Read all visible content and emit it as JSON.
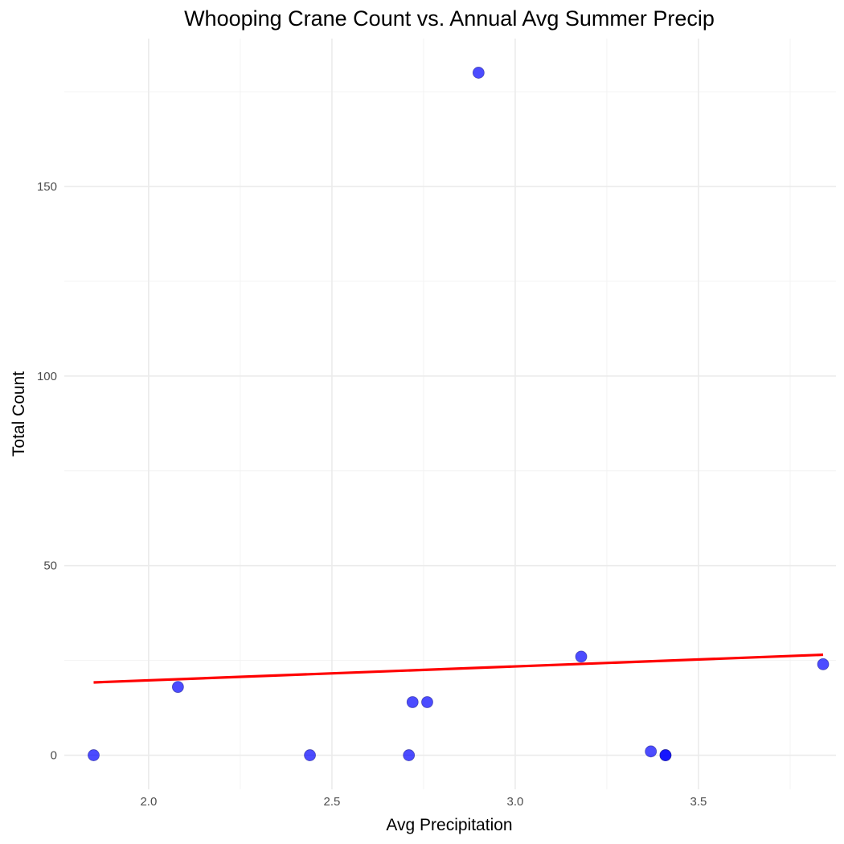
{
  "chart_data": {
    "type": "scatter",
    "title": "Whooping Crane Count vs. Annual Avg Summer Precip",
    "xlabel": "Avg Precipitation",
    "ylabel": "Total Count",
    "xlim": [
      1.77,
      3.875
    ],
    "ylim": [
      -9,
      189
    ],
    "x_ticks": [
      2.0,
      2.5,
      3.0,
      3.5
    ],
    "x_tick_labels": [
      "2.0",
      "2.5",
      "3.0",
      "3.5"
    ],
    "x_minor_ticks": [
      2.25,
      2.75,
      3.25,
      3.75
    ],
    "y_ticks": [
      0,
      50,
      100,
      150
    ],
    "y_tick_labels": [
      "0",
      "50",
      "100",
      "150"
    ],
    "y_minor_ticks": [
      25,
      75,
      125,
      175
    ],
    "grid": true,
    "point_color": "#0000ff",
    "line_color": "#ff0000",
    "points": [
      {
        "x": 1.85,
        "y": 0
      },
      {
        "x": 2.08,
        "y": 18
      },
      {
        "x": 2.44,
        "y": 0
      },
      {
        "x": 2.71,
        "y": 0
      },
      {
        "x": 2.72,
        "y": 14
      },
      {
        "x": 2.76,
        "y": 14
      },
      {
        "x": 2.9,
        "y": 180
      },
      {
        "x": 3.18,
        "y": 26
      },
      {
        "x": 3.37,
        "y": 1
      },
      {
        "x": 3.41,
        "y": 0
      },
      {
        "x": 3.41,
        "y": 0
      },
      {
        "x": 3.84,
        "y": 24
      }
    ],
    "trend_line": {
      "x": [
        1.85,
        3.84
      ],
      "y": [
        19.2,
        26.5
      ]
    }
  }
}
